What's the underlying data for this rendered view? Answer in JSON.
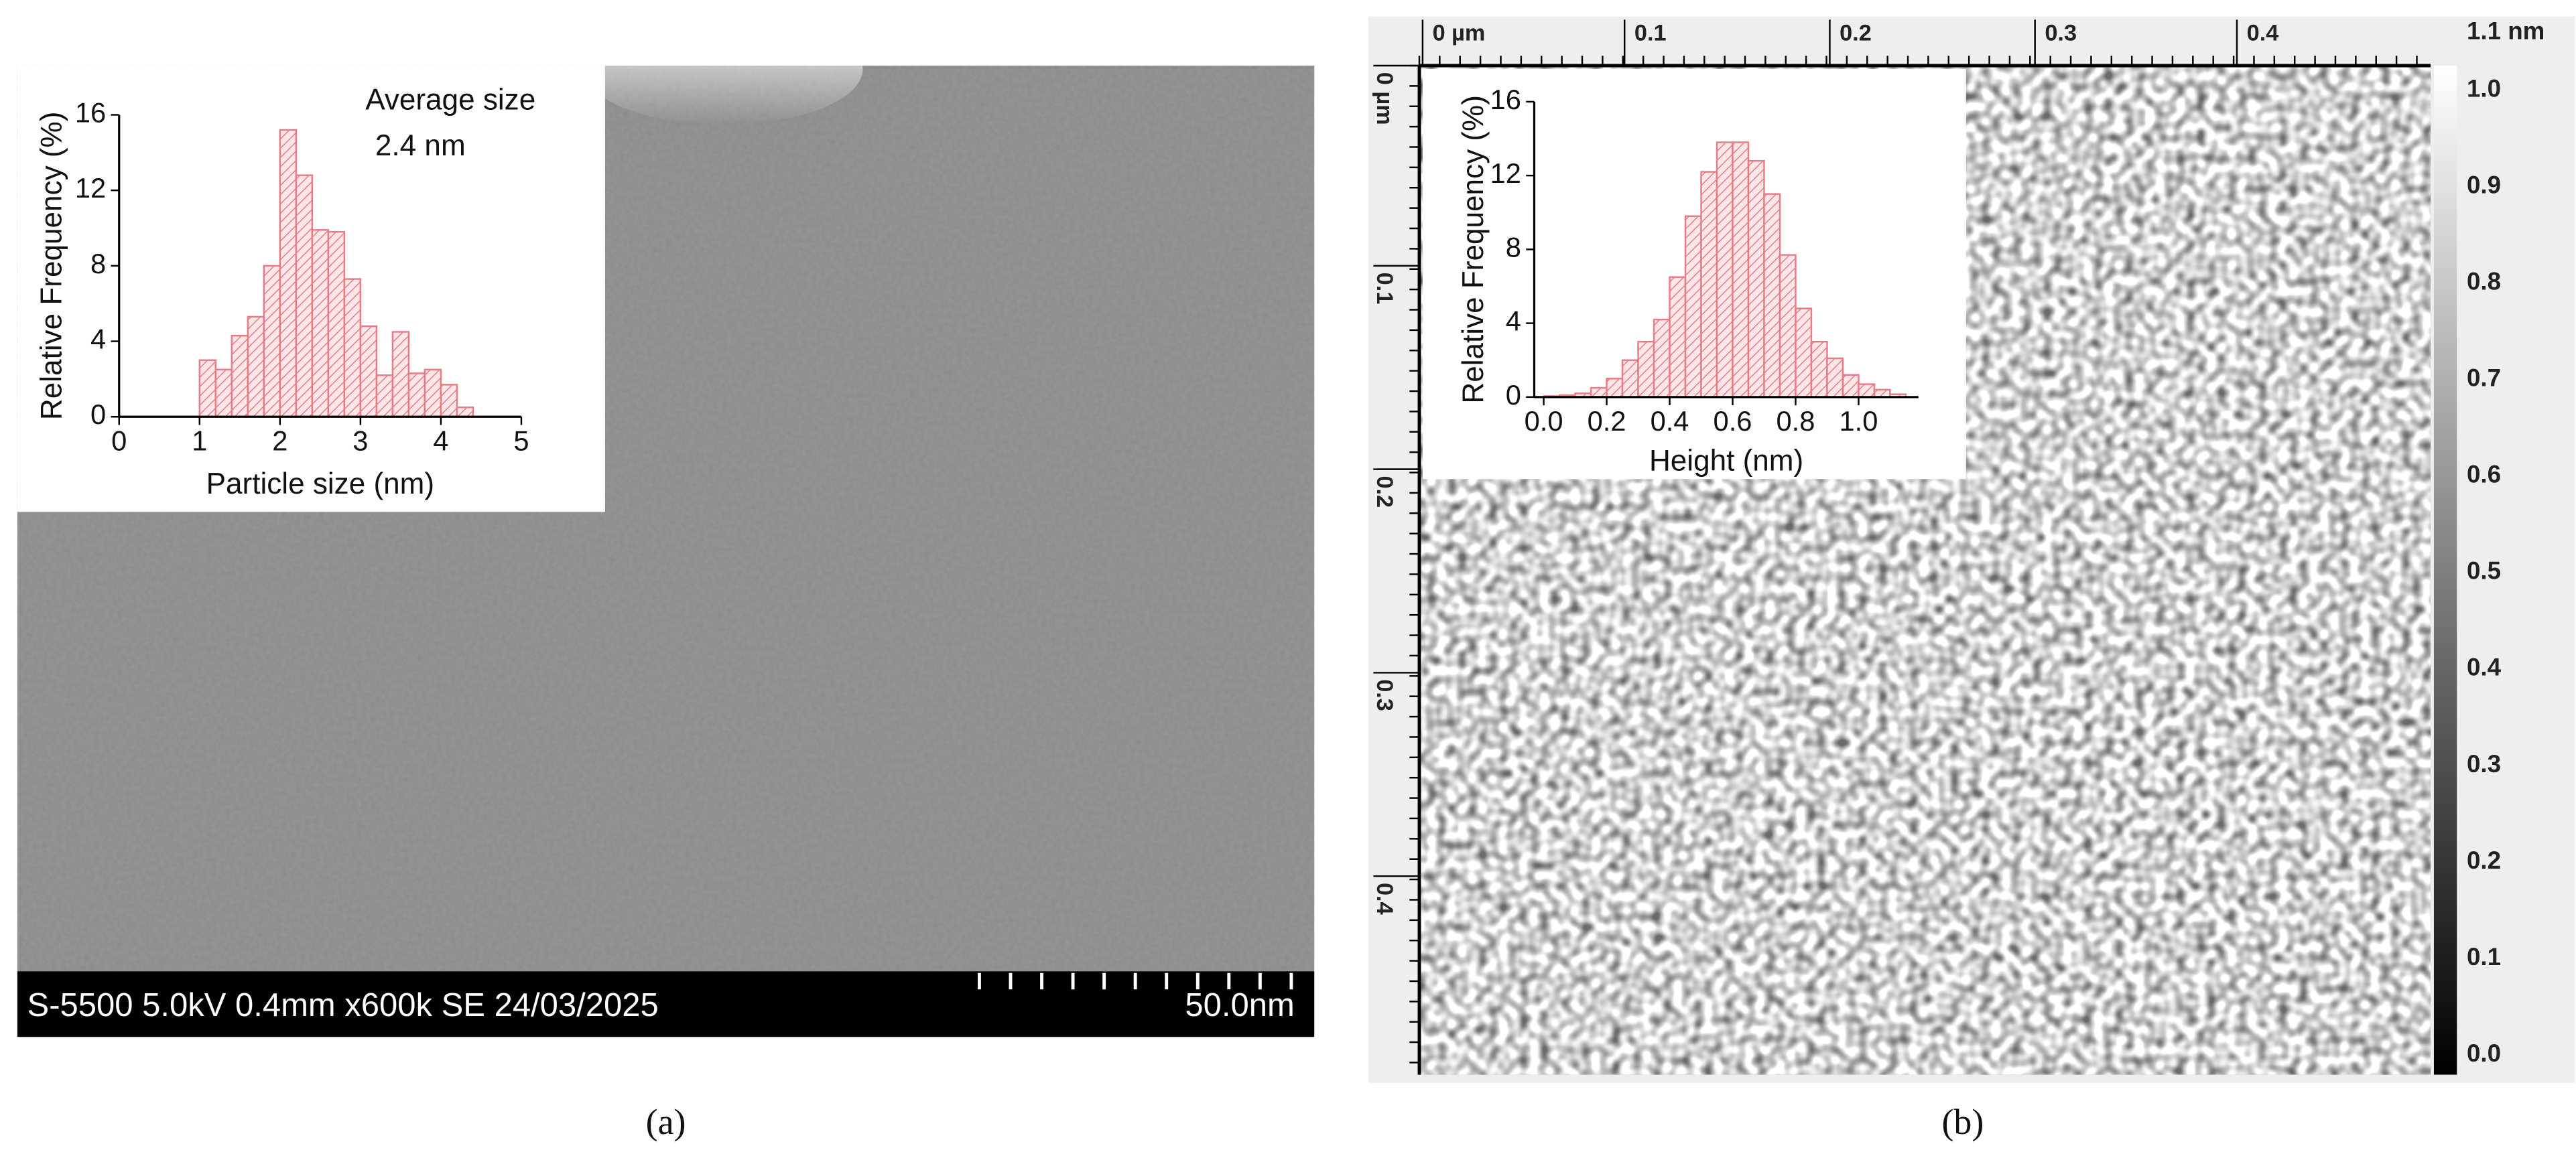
{
  "chart_data": [
    {
      "type": "histogram",
      "ylabel": "Relative Frequency (%)",
      "xlabel": "Particle size (nm)",
      "annotation": [
        "Average size",
        "2.4 nm"
      ],
      "bins": [
        1.0,
        1.2,
        1.4,
        1.6,
        1.8,
        2.0,
        2.2,
        2.4,
        2.6,
        2.8,
        3.0,
        3.2,
        3.4,
        3.6,
        3.8,
        4.0,
        4.2,
        4.4
      ],
      "values": [
        3.0,
        2.5,
        4.3,
        5.3,
        8.0,
        15.2,
        12.8,
        9.9,
        9.8,
        7.3,
        4.8,
        2.2,
        4.5,
        2.3,
        2.5,
        1.7,
        0.5
      ],
      "color": "#e87c86",
      "xlim": [
        0,
        5
      ],
      "ylim": [
        0,
        16
      ],
      "xticks": [
        0,
        1,
        2,
        3,
        4,
        5
      ],
      "yticks": [
        0,
        4,
        8,
        12,
        16
      ]
    },
    {
      "type": "histogram",
      "ylabel": "Relative Frequency (%)",
      "xlabel": "Height (nm)",
      "bins": [
        0.0,
        0.05,
        0.1,
        0.15,
        0.2,
        0.25,
        0.3,
        0.35,
        0.4,
        0.45,
        0.5,
        0.55,
        0.6,
        0.65,
        0.7,
        0.75,
        0.8,
        0.85,
        0.9,
        0.95,
        1.0,
        1.05,
        1.1,
        1.15
      ],
      "values": [
        0.05,
        0.1,
        0.2,
        0.5,
        1.0,
        2.0,
        3.0,
        4.2,
        6.5,
        9.8,
        12.2,
        13.8,
        13.8,
        12.8,
        11.0,
        7.7,
        4.8,
        3.0,
        2.1,
        1.2,
        0.7,
        0.4,
        0.15
      ],
      "color": "#e87c86",
      "xlim": [
        -0.03,
        1.19
      ],
      "ylim": [
        0,
        16
      ],
      "xticks": [
        {
          "value": 0,
          "label": "0.0"
        },
        0.2,
        0.4,
        0.6,
        0.8,
        {
          "value": 1,
          "label": "1.0"
        }
      ],
      "yticks": [
        0,
        4,
        8,
        12,
        16
      ]
    }
  ],
  "sem": {
    "info": "S-5500 5.0kV 0.4mm x600k SE 24/03/2025",
    "scale": "50.0nm"
  },
  "afm": {
    "top_labels": [
      "0 µm",
      "0.1",
      "0.2",
      "0.3",
      "0.4"
    ],
    "left_labels": [
      "0 µm",
      "0.1",
      "0.2",
      "0.3",
      "0.4"
    ],
    "colorbar_labels": [
      "1.1 nm",
      "1.0",
      "0.9",
      "0.8",
      "0.7",
      "0.6",
      "0.5",
      "0.4",
      "0.3",
      "0.2",
      "0.1",
      "0.0"
    ]
  },
  "captions": [
    "(a)",
    "(b)"
  ]
}
